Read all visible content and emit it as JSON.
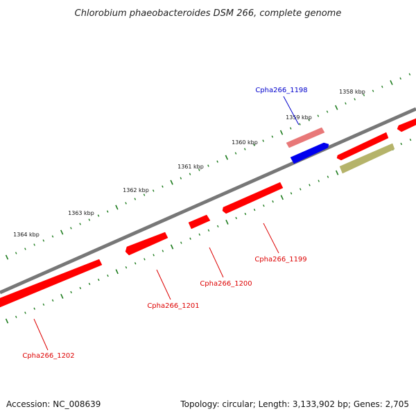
{
  "title": "Chlorobium phaeobacteroides DSM 266, complete genome",
  "footer": {
    "accession": "Accession: NC_008639",
    "summary": "Topology: circular; Length: 3,133,902 bp; Genes: 2,705"
  },
  "colors": {
    "backbone": "#777777",
    "tick": "#1a7a1a",
    "gene_red": "#ff0000",
    "gene_pink": "#e87878",
    "gene_blue": "#0000ee",
    "gene_olive": "#b5b36a",
    "label_red": "#dd0000",
    "label_blue": "#0000cc"
  },
  "kbp_ticks": [
    {
      "label": "1358 kbp"
    },
    {
      "label": "1359 kbp"
    },
    {
      "label": "1360 kbp"
    },
    {
      "label": "1361 kbp"
    },
    {
      "label": "1362 kbp"
    },
    {
      "label": "1363 kbp"
    },
    {
      "label": "1364 kbp"
    }
  ],
  "gene_labels": [
    {
      "name": "Cpha266_1198",
      "color": "blue"
    },
    {
      "name": "Cpha266_1199",
      "color": "red"
    },
    {
      "name": "Cpha266_1200",
      "color": "red"
    },
    {
      "name": "Cpha266_1201",
      "color": "red"
    },
    {
      "name": "Cpha266_1202",
      "color": "red"
    }
  ]
}
